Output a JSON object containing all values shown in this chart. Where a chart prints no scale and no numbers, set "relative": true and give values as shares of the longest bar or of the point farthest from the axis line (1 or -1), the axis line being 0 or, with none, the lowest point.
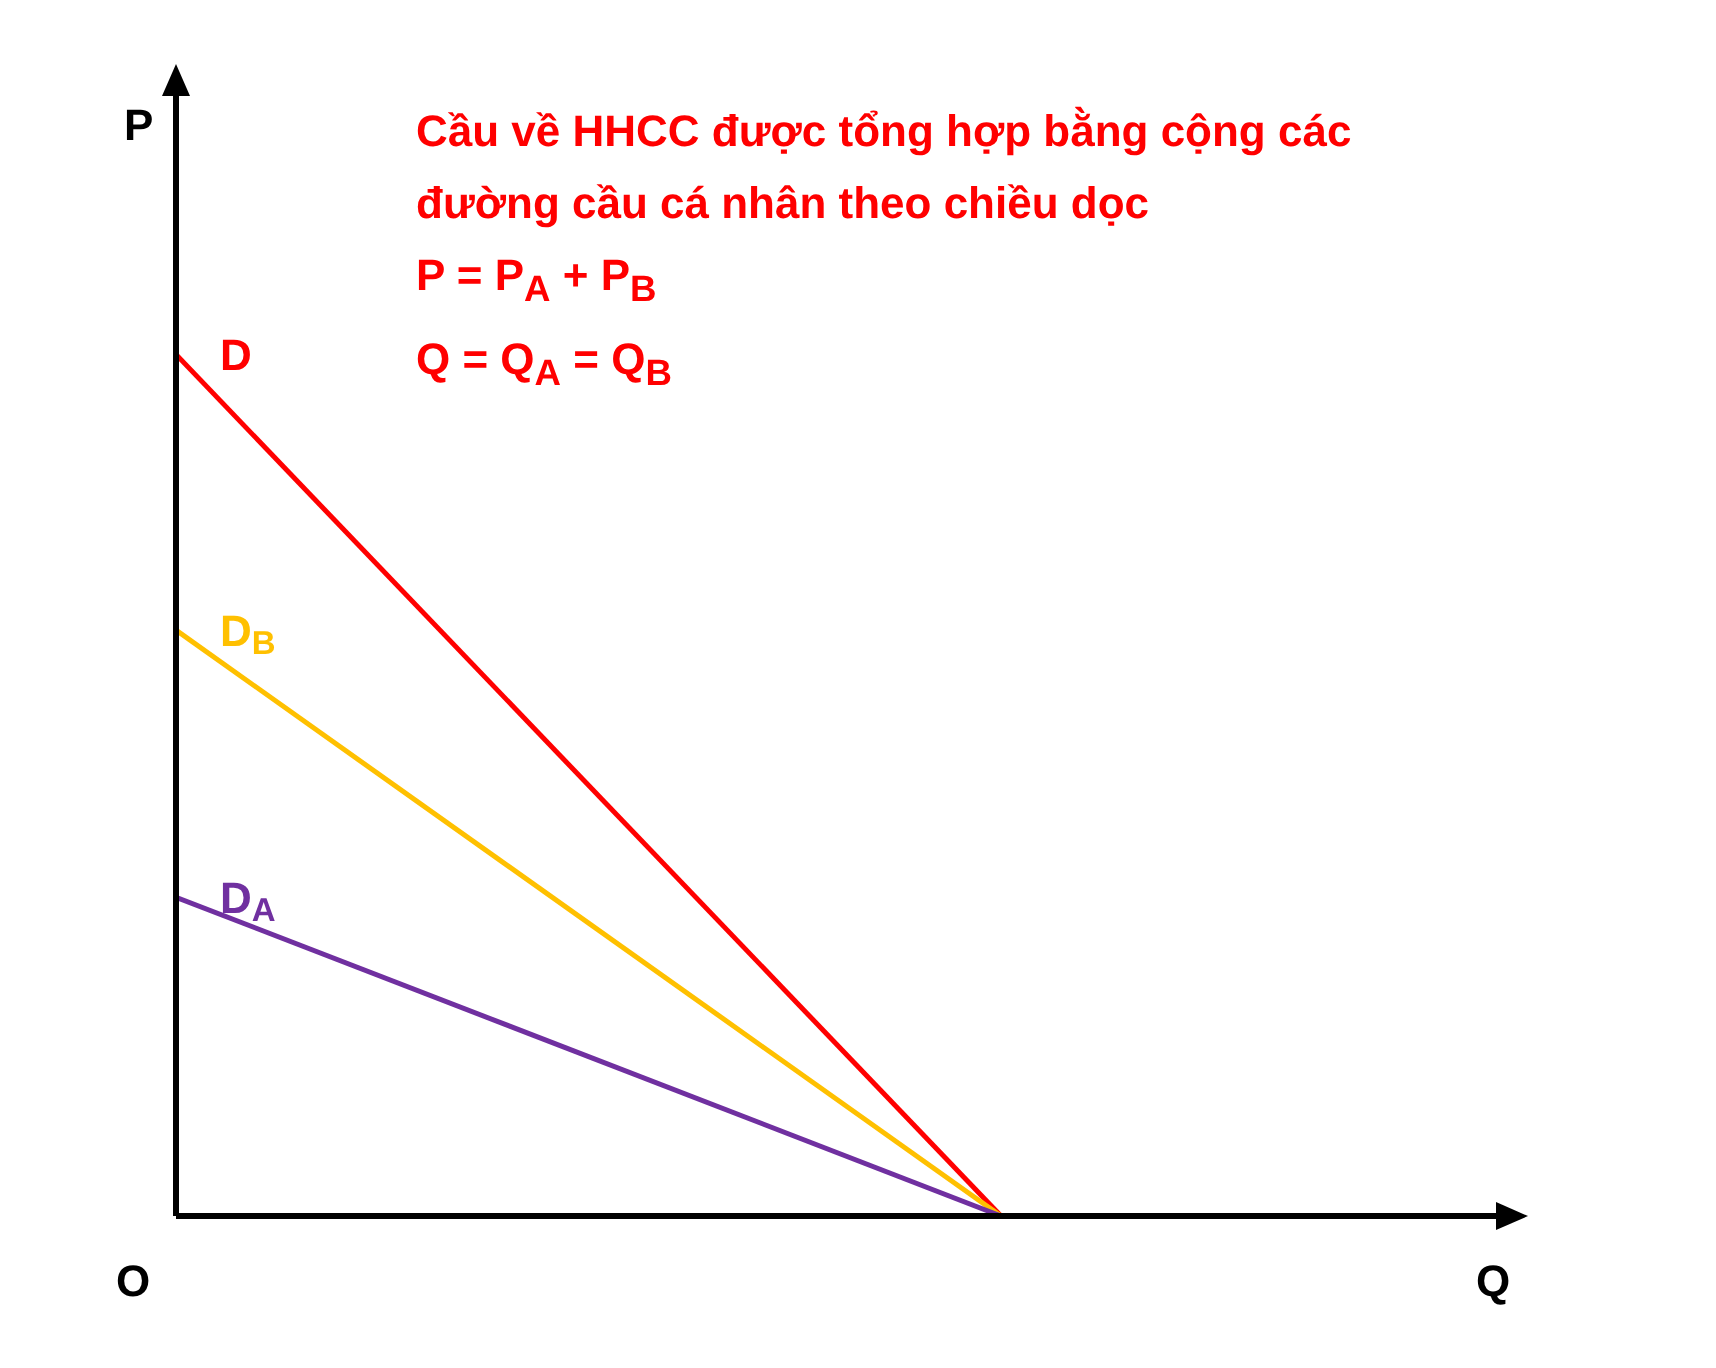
{
  "chart_data": {
    "type": "line",
    "relative": true,
    "title": "Cầu về HHCC được tổng hợp bằng cộng các đường cầu cá nhân theo chiều dọc",
    "xlabel": "Q",
    "ylabel": "P",
    "annotations": [
      "P = P$_{A}$ + P$_{B}$",
      "Q = Q$_{A}$ = Q$_{B}$",
      "O"
    ],
    "categories": [
      null,
      null
    ],
    "grid": false,
    "legend": false,
    "marker": "none",
    "line_style": "solid",
    "series": [
      {
        "name": "D",
        "color": "#ff0000",
        "values": [
          1,
          0
        ]
      },
      {
        "name": "D$_{B}$",
        "color": "#ffc000",
        "values": [
          0.68,
          0
        ]
      },
      {
        "name": "D$_{A}$",
        "color": "#7030a0",
        "values": [
          0.37,
          0
        ]
      }
    ]
  }
}
